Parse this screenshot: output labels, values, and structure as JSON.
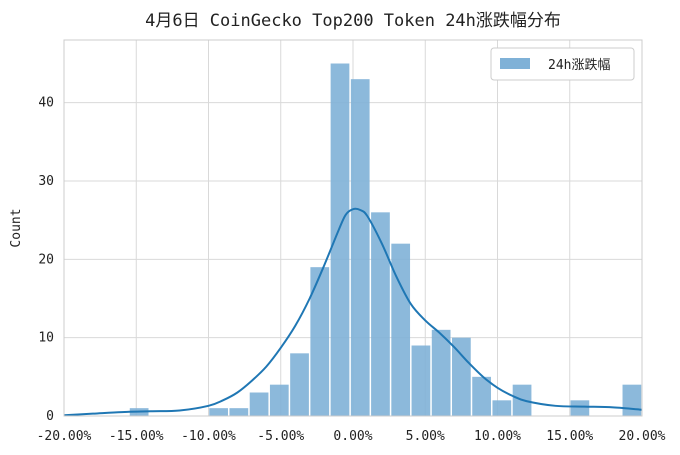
{
  "chart_data": {
    "type": "bar",
    "title": "4月6日 CoinGecko Top200 Token 24h涨跌幅分布",
    "xlabel": "",
    "ylabel": "Count",
    "xlim": [
      -20,
      20
    ],
    "ylim": [
      0,
      48
    ],
    "x_ticks": [
      -20,
      -15,
      -10,
      -5,
      0,
      5,
      10,
      15,
      20
    ],
    "x_tick_labels": [
      "-20.00%",
      "-15.00%",
      "-10.00%",
      "-5.00%",
      "0.00%",
      "5.00%",
      "10.00%",
      "15.00%",
      "20.00%"
    ],
    "y_ticks": [
      0,
      10,
      20,
      30,
      40
    ],
    "y_tick_labels": [
      "0",
      "10",
      "20",
      "30",
      "40"
    ],
    "grid": true,
    "legend_position": "top-right",
    "bins": [
      {
        "start": -15.5,
        "end": -14.1,
        "count": 1
      },
      {
        "start": -10.0,
        "end": -8.6,
        "count": 1
      },
      {
        "start": -8.6,
        "end": -7.2,
        "count": 1
      },
      {
        "start": -7.2,
        "end": -5.8,
        "count": 3
      },
      {
        "start": -5.8,
        "end": -4.4,
        "count": 4
      },
      {
        "start": -4.4,
        "end": -3.0,
        "count": 8
      },
      {
        "start": -3.0,
        "end": -1.6,
        "count": 19
      },
      {
        "start": -1.6,
        "end": -0.2,
        "count": 45
      },
      {
        "start": -0.2,
        "end": 1.2,
        "count": 43
      },
      {
        "start": 1.2,
        "end": 2.6,
        "count": 26
      },
      {
        "start": 2.6,
        "end": 4.0,
        "count": 22
      },
      {
        "start": 4.0,
        "end": 5.4,
        "count": 9
      },
      {
        "start": 5.4,
        "end": 6.8,
        "count": 11
      },
      {
        "start": 6.8,
        "end": 8.2,
        "count": 10
      },
      {
        "start": 8.2,
        "end": 9.6,
        "count": 5
      },
      {
        "start": 9.6,
        "end": 11.0,
        "count": 2
      },
      {
        "start": 11.0,
        "end": 12.4,
        "count": 4
      },
      {
        "start": 15.0,
        "end": 16.4,
        "count": 2
      },
      {
        "start": 18.6,
        "end": 20.0,
        "count": 4
      }
    ],
    "kde": {
      "x": [
        -20,
        -18,
        -16,
        -14,
        -12,
        -10,
        -9,
        -8,
        -7,
        -6,
        -5,
        -4,
        -3,
        -2,
        -1,
        -0.5,
        0,
        0.5,
        1,
        2,
        3,
        4,
        5,
        6,
        7,
        8,
        9,
        10,
        11,
        12,
        14,
        16,
        18,
        20
      ],
      "y": [
        0.1,
        0.3,
        0.5,
        0.6,
        0.7,
        1.3,
        2.0,
        3.0,
        4.5,
        6.3,
        8.7,
        11.5,
        15.0,
        19.2,
        23.7,
        25.7,
        26.4,
        26.3,
        25.5,
        22.0,
        17.8,
        14.3,
        12.2,
        10.6,
        8.8,
        6.8,
        5.0,
        3.6,
        2.6,
        1.9,
        1.3,
        1.2,
        1.1,
        0.8
      ]
    },
    "series": [
      {
        "name": "24h涨跌幅",
        "color": "#7fb1d7"
      }
    ],
    "line_color": "#1f77b4",
    "bar_color": "#7fb1d7"
  }
}
